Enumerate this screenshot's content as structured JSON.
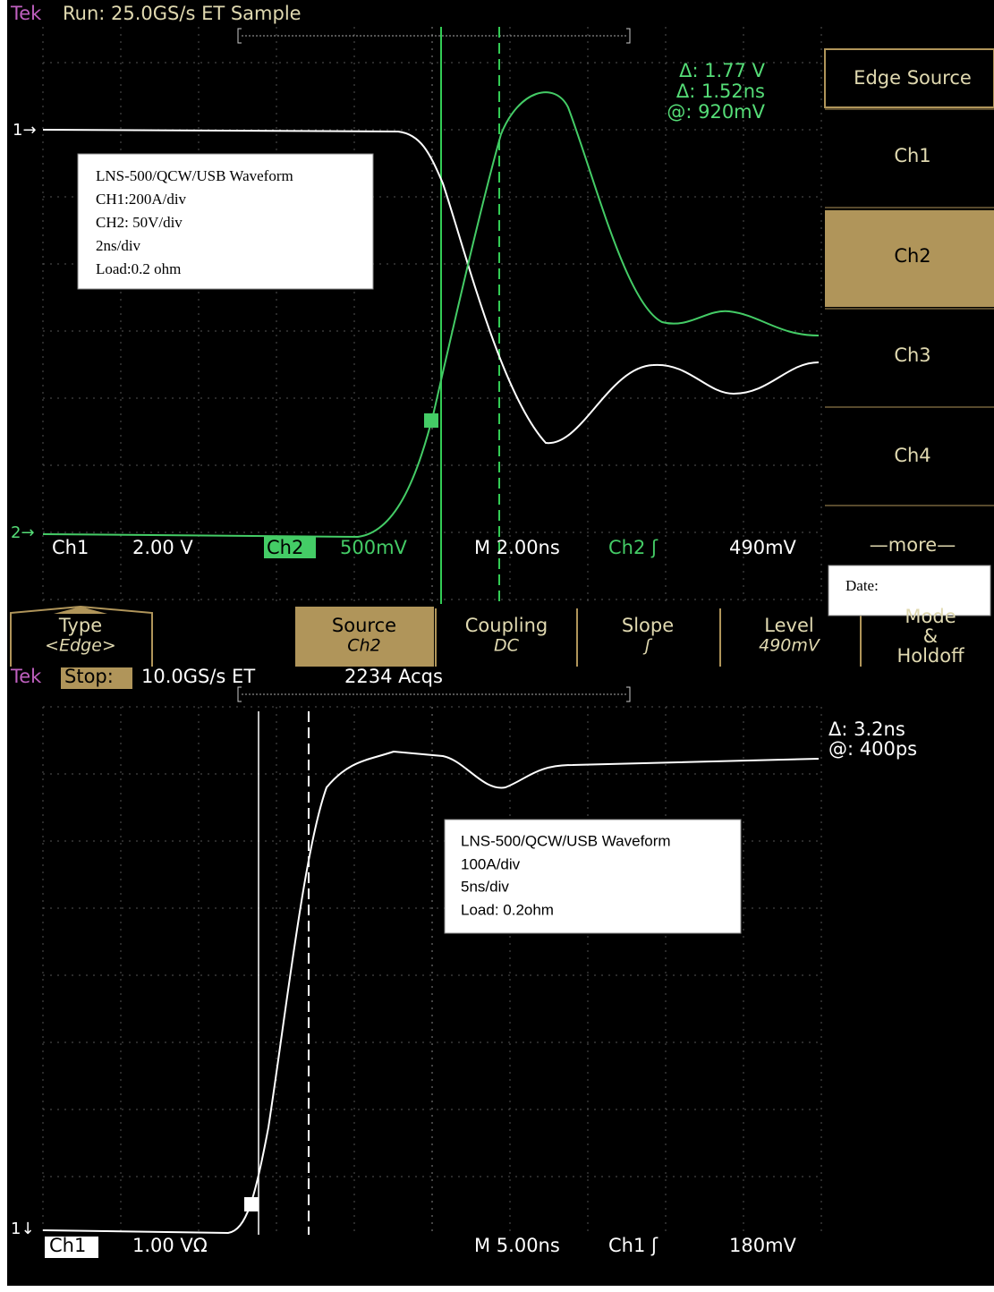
{
  "top_screen": {
    "brand": "Tek",
    "status": "Run: 25.0GS/s ET Sample",
    "readouts": [
      "Δ: 1.77 V",
      "Δ: 1.52ns",
      "@: 920mV"
    ],
    "note": [
      "LNS-500/QCW/USB Waveform",
      "CH1:200A/div",
      "CH2: 50V/div",
      "2ns/div",
      "Load:0.2 ohm"
    ],
    "markers": [
      "1→",
      "2→"
    ],
    "status_bar": [
      "Ch1",
      "2.00 V",
      "Ch2",
      "500mV",
      "M 2.00ns",
      "Ch2 ʃ",
      "490mV"
    ]
  },
  "side_menu": {
    "title": "Edge Source",
    "items": [
      "Ch1",
      "Ch2",
      "Ch3",
      "Ch4",
      "—more—"
    ]
  },
  "bottom_menu": [
    [
      "Type",
      "<Edge>"
    ],
    [
      "Source",
      "Ch2"
    ],
    [
      "Coupling",
      "DC"
    ],
    [
      "Slope",
      "ʃ"
    ],
    [
      "Level",
      "490mV"
    ],
    [
      "Mode",
      "&",
      "Holdoff"
    ]
  ],
  "date_box": {
    "label": "Date:"
  },
  "bottom_screen": {
    "brand": "Tek",
    "state": "Stop:",
    "status": "10.0GS/s ET",
    "acqs": "2234 Acqs",
    "readouts": [
      "Δ: 3.2ns",
      "@: 400ps"
    ],
    "note": [
      "LNS-500/QCW/USB Waveform",
      "100A/div",
      "5ns/div",
      "Load: 0.2ohm"
    ],
    "marker": "1↓",
    "status_bar": [
      "Ch1",
      "1.00 VΩ",
      "M 5.00ns",
      "Ch1 ʃ",
      "180mV"
    ]
  }
}
